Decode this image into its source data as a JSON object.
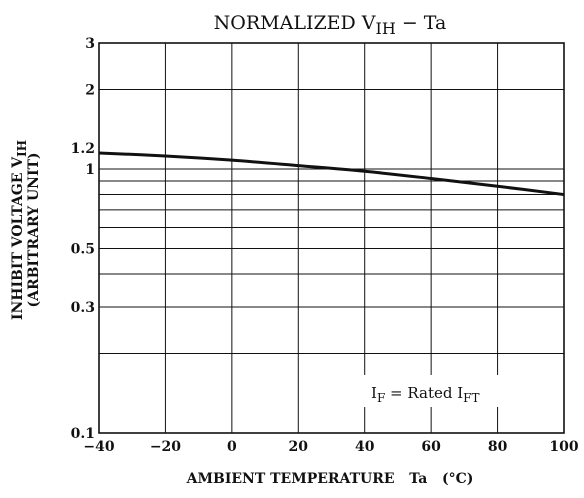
{
  "chart_data": {
    "type": "line",
    "title": "NORMALIZED V",
    "title_subscript": "IH",
    "title_tail": " − Ta",
    "xlabel": "AMBIENT TEMPERATURE   Ta   (°C)",
    "ylabel_line1": "INHIBIT VOLTAGE  V",
    "ylabel_line1_subscript": "IH",
    "ylabel_line2": "(ARBITRARY UNIT)",
    "x_scale": "linear",
    "y_scale": "log",
    "xlim": [
      -40,
      100
    ],
    "ylim": [
      0.1,
      3
    ],
    "x_ticks": [
      {
        "value": -40,
        "label": "−40"
      },
      {
        "value": -20,
        "label": "−20"
      },
      {
        "value": 0,
        "label": "0"
      },
      {
        "value": 20,
        "label": "20"
      },
      {
        "value": 40,
        "label": "40"
      },
      {
        "value": 60,
        "label": "60"
      },
      {
        "value": 80,
        "label": "80"
      },
      {
        "value": 100,
        "label": "100"
      }
    ],
    "y_ticks": [
      {
        "value": 0.1,
        "label": "0.1"
      },
      {
        "value": 0.3,
        "label": "0.3"
      },
      {
        "value": 0.5,
        "label": "0.5"
      },
      {
        "value": 1,
        "label": "1"
      },
      {
        "value": 1.2,
        "label": "1.2"
      },
      {
        "value": 2,
        "label": "2"
      },
      {
        "value": 3,
        "label": "3"
      }
    ],
    "grid": true,
    "grid_y_values": [
      0.2,
      0.3,
      0.4,
      0.5,
      0.6,
      0.7,
      0.8,
      0.9,
      1,
      2
    ],
    "grid_x_values": [
      -20,
      0,
      20,
      40,
      60,
      80
    ],
    "series": [
      {
        "x": [
          -40,
          -20,
          0,
          20,
          40,
          60,
          80,
          100
        ],
        "values": [
          1.15,
          1.12,
          1.08,
          1.03,
          0.98,
          0.92,
          0.86,
          0.8
        ]
      }
    ],
    "annotation": {
      "prefix": "I",
      "prefix_sub": "F",
      "middle": " = Rated I",
      "suffix_sub": "FT"
    },
    "colors": {
      "line": "#111111",
      "grid": "#111111",
      "background": "#ffffff"
    }
  }
}
